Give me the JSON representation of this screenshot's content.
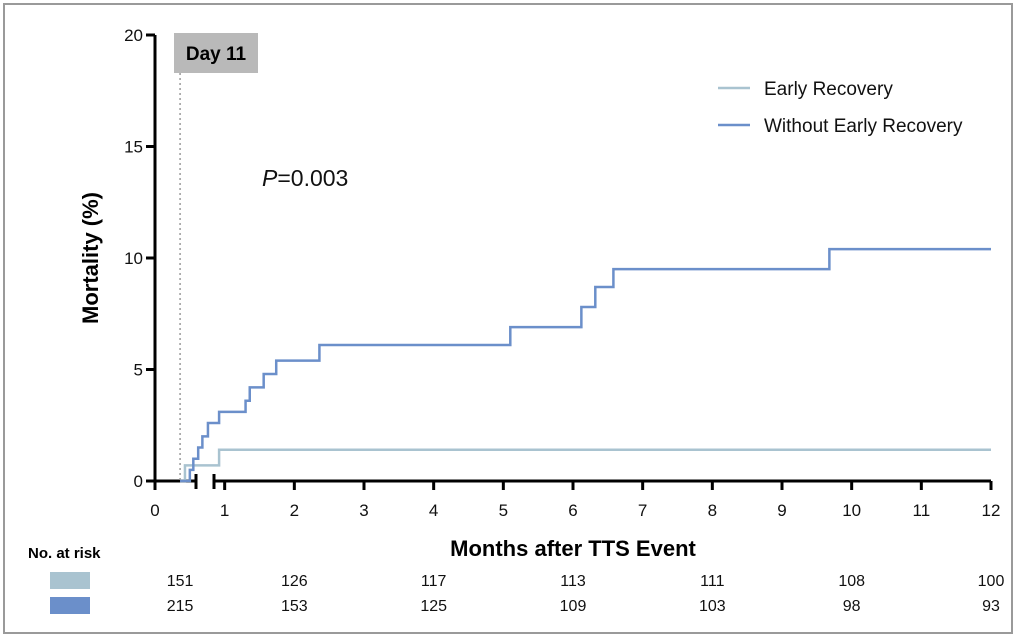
{
  "chart_data": {
    "type": "line",
    "subtype": "kaplan-meier-step",
    "xlabel": "Months after TTS Event",
    "ylabel": "Mortality (%)",
    "xlim": [
      0,
      12
    ],
    "ylim": [
      0,
      20
    ],
    "xticks": [
      "0",
      "1",
      "2",
      "3",
      "4",
      "5",
      "6",
      "7",
      "8",
      "9",
      "10",
      "11",
      "12"
    ],
    "yticks": [
      "0",
      "5",
      "10",
      "15",
      "20"
    ],
    "x_axis_break": true,
    "grid": false,
    "legend_position": "top-right",
    "marker": {
      "label": "Day 11",
      "x": 0.36
    },
    "annotation": {
      "p_italic": "P",
      "p_value": "=0.003"
    },
    "series": [
      {
        "name": "Early Recovery",
        "color": "#a9c3d0",
        "steps": [
          [
            0.36,
            0
          ],
          [
            0.43,
            0.7
          ],
          [
            0.92,
            1.4
          ],
          [
            12,
            1.4
          ]
        ]
      },
      {
        "name": "Without Early Recovery",
        "color": "#6b8fca",
        "steps": [
          [
            0.36,
            0
          ],
          [
            0.5,
            0.5
          ],
          [
            0.55,
            1.0
          ],
          [
            0.62,
            1.5
          ],
          [
            0.68,
            2.0
          ],
          [
            0.76,
            2.6
          ],
          [
            0.92,
            3.1
          ],
          [
            1.3,
            3.6
          ],
          [
            1.36,
            4.2
          ],
          [
            1.56,
            4.8
          ],
          [
            1.74,
            5.4
          ],
          [
            2.36,
            6.1
          ],
          [
            5.1,
            6.9
          ],
          [
            6.12,
            7.8
          ],
          [
            6.32,
            8.7
          ],
          [
            6.58,
            9.5
          ],
          [
            9.68,
            10.4
          ],
          [
            12,
            10.4
          ]
        ]
      }
    ],
    "at_risk": {
      "title": "No. at risk",
      "x": [
        0.36,
        2,
        4,
        6,
        8,
        10,
        12
      ],
      "rows": [
        {
          "color": "#a9c3d0",
          "values": [
            "151",
            "126",
            "117",
            "113",
            "111",
            "108",
            "100"
          ]
        },
        {
          "color": "#6b8fca",
          "values": [
            "215",
            "153",
            "125",
            "109",
            "103",
            "98",
            "93"
          ]
        }
      ]
    }
  }
}
